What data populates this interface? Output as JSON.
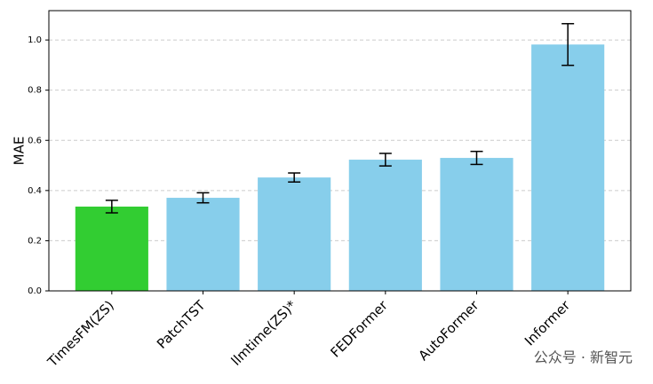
{
  "chart_data": {
    "type": "bar",
    "y_label": "MAE",
    "categories": [
      "TimesFM(ZS)",
      "PatchTST",
      "llmtime(ZS)*",
      "FEDFormer",
      "AutoFormer",
      "Informer"
    ],
    "values": [
      0.336,
      0.371,
      0.452,
      0.523,
      0.53,
      0.982
    ],
    "errors": [
      0.025,
      0.02,
      0.018,
      0.025,
      0.026,
      0.083
    ],
    "colors": [
      "#32cd32",
      "#87ceeb",
      "#87ceeb",
      "#87ceeb",
      "#87ceeb",
      "#87ceeb"
    ],
    "ylim": [
      0,
      1.117
    ],
    "yticks": [
      {
        "value": 0,
        "label": "0.0"
      },
      0.2,
      0.4,
      0.6,
      0.8,
      {
        "value": 1.0,
        "label": "1.0"
      }
    ],
    "grid": true
  },
  "watermark": "公众号 · 新智元"
}
